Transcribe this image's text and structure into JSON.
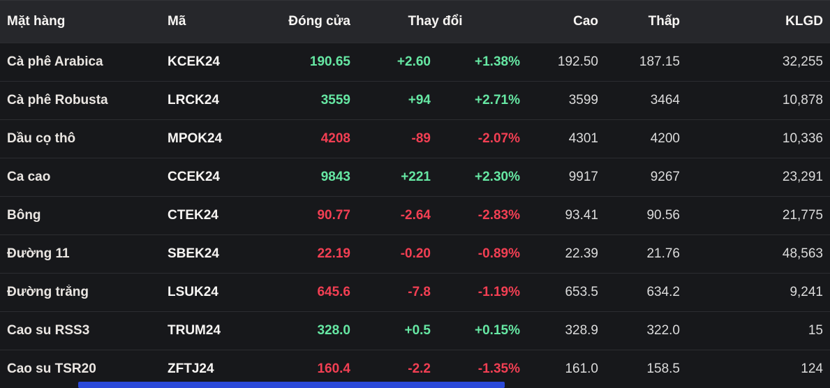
{
  "table": {
    "headers": {
      "name": "Mặt hàng",
      "code": "Mã",
      "close": "Đóng cửa",
      "change": "Thay đổi",
      "high": "Cao",
      "low": "Thấp",
      "volume": "KLGD"
    },
    "rows": [
      {
        "name": "Cà phê Arabica",
        "code": "KCEK24",
        "close": "190.65",
        "change": "+2.60",
        "change_pct": "+1.38%",
        "high": "192.50",
        "low": "187.15",
        "volume": "32,255",
        "direction": "dir-up"
      },
      {
        "name": "Cà phê Robusta",
        "code": "LRCK24",
        "close": "3559",
        "change": "+94",
        "change_pct": "+2.71%",
        "high": "3599",
        "low": "3464",
        "volume": "10,878",
        "direction": "dir-up"
      },
      {
        "name": "Dầu cọ thô",
        "code": "MPOK24",
        "close": "4208",
        "change": "-89",
        "change_pct": "-2.07%",
        "high": "4301",
        "low": "4200",
        "volume": "10,336",
        "direction": "dir-down"
      },
      {
        "name": "Ca cao",
        "code": "CCEK24",
        "close": "9843",
        "change": "+221",
        "change_pct": "+2.30%",
        "high": "9917",
        "low": "9267",
        "volume": "23,291",
        "direction": "dir-up"
      },
      {
        "name": "Bông",
        "code": "CTEK24",
        "close": "90.77",
        "change": "-2.64",
        "change_pct": "-2.83%",
        "high": "93.41",
        "low": "90.56",
        "volume": "21,775",
        "direction": "dir-down"
      },
      {
        "name": "Đường 11",
        "code": "SBEK24",
        "close": "22.19",
        "change": "-0.20",
        "change_pct": "-0.89%",
        "high": "22.39",
        "low": "21.76",
        "volume": "48,563",
        "direction": "dir-down"
      },
      {
        "name": "Đường trắng",
        "code": "LSUK24",
        "close": "645.6",
        "change": "-7.8",
        "change_pct": "-1.19%",
        "high": "653.5",
        "low": "634.2",
        "volume": "9,241",
        "direction": "dir-down"
      },
      {
        "name": "Cao su RSS3",
        "code": "TRUM24",
        "close": "328.0",
        "change": "+0.5",
        "change_pct": "+0.15%",
        "high": "328.9",
        "low": "322.0",
        "volume": "15",
        "direction": "dir-up"
      },
      {
        "name": "Cao su TSR20",
        "code": "ZFTJ24",
        "close": "160.4",
        "change": "-2.2",
        "change_pct": "-1.35%",
        "high": "161.0",
        "low": "158.5",
        "volume": "124",
        "direction": "dir-down"
      }
    ]
  },
  "colors": {
    "up": "#66e7a3",
    "down": "#f23f53",
    "header_bg": "#26272b",
    "row_bg": "#17181b",
    "scrollbar_thumb": "#2b49d8"
  }
}
